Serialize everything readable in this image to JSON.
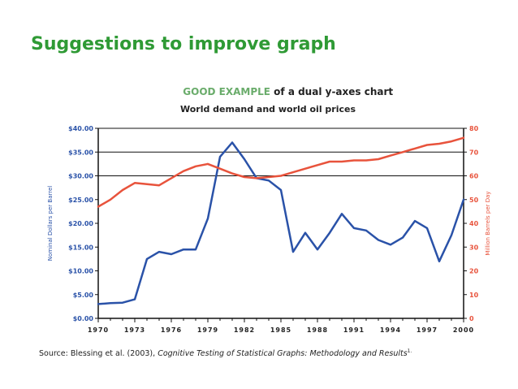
{
  "slide": {
    "title": "Suggestions to improve graph"
  },
  "chart_data": {
    "type": "line",
    "title_emphasis": "GOOD EXAMPLE",
    "title_rest": " of a dual y-axes chart",
    "subtitle": "World demand and world oil prices",
    "xlabel": "",
    "ylabel_left": "Nominal Dollars per Barrel",
    "ylabel_right": "Million Barrels per Day",
    "x_ticks": [
      "1970",
      "1973",
      "1976",
      "1979",
      "1982",
      "1985",
      "1988",
      "1991",
      "1994",
      "1997",
      "2000"
    ],
    "x_range": [
      1970,
      2000
    ],
    "y_left_ticks": [
      "$0.00",
      "$5.00",
      "$10.00",
      "$15.00",
      "$20.00",
      "$25.00",
      "$30.00",
      "$35.00",
      "$40.00"
    ],
    "y_left_range": [
      0,
      40
    ],
    "y_right_ticks": [
      "0",
      "10",
      "20",
      "30",
      "40",
      "50",
      "60",
      "70",
      "80"
    ],
    "y_right_range": [
      0,
      80
    ],
    "gridlines": [
      30,
      35
    ],
    "series": [
      {
        "name": "Oil price",
        "axis": "left",
        "color": "#2a52a8",
        "x": [
          1970,
          1971,
          1972,
          1973,
          1974,
          1975,
          1976,
          1977,
          1978,
          1979,
          1980,
          1981,
          1982,
          1983,
          1984,
          1985,
          1986,
          1987,
          1988,
          1989,
          1990,
          1991,
          1992,
          1993,
          1994,
          1995,
          1996,
          1997,
          1998,
          1999,
          2000
        ],
        "values": [
          3.0,
          3.2,
          3.3,
          4.0,
          12.5,
          14.0,
          13.5,
          14.5,
          14.5,
          21.0,
          34.0,
          37.0,
          33.5,
          29.5,
          29.0,
          27.0,
          14.0,
          18.0,
          14.5,
          18.0,
          22.0,
          19.0,
          18.5,
          16.5,
          15.5,
          17.0,
          20.5,
          19.0,
          12.0,
          17.5,
          25.0
        ]
      },
      {
        "name": "World demand",
        "axis": "right",
        "color": "#e8533c",
        "x": [
          1970,
          1971,
          1972,
          1973,
          1974,
          1975,
          1976,
          1977,
          1978,
          1979,
          1980,
          1981,
          1982,
          1983,
          1984,
          1985,
          1986,
          1987,
          1988,
          1989,
          1990,
          1991,
          1992,
          1993,
          1994,
          1995,
          1996,
          1997,
          1998,
          1999,
          2000
        ],
        "values": [
          47,
          50,
          54,
          57,
          56.5,
          56,
          59,
          62,
          64,
          65,
          63,
          61,
          59.5,
          59,
          59.5,
          60,
          61.5,
          63,
          64.5,
          66,
          66,
          66.5,
          66.5,
          67,
          68.5,
          70,
          71.5,
          73,
          73.5,
          74.5,
          76
        ]
      }
    ],
    "source_prefix": "Source: Blessing et al. (2003), ",
    "source_title": "Cognitive Testing of Statistical Graphs: Methodology and Results",
    "source_note": "1.",
    "colors": {
      "title_green": "#2f9a35",
      "emphasis": "#6aac6b",
      "left_axis": "#2a52a8",
      "right_axis": "#e8533c"
    }
  }
}
